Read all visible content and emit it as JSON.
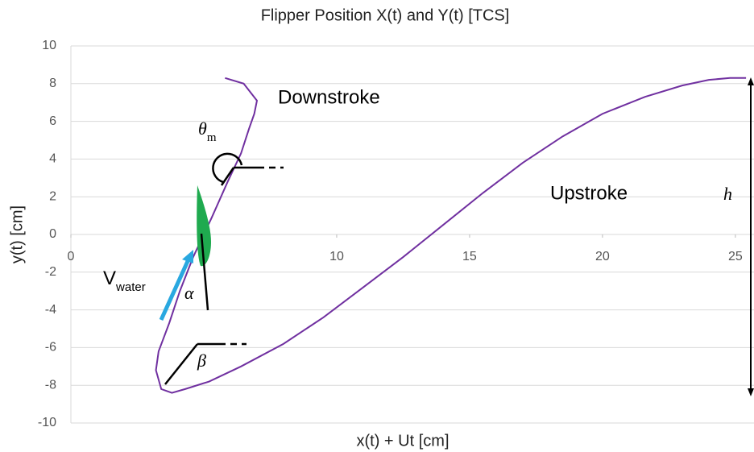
{
  "chart_data": {
    "type": "line",
    "title": "Flipper Position X(t) and Y(t) [TCS]",
    "x_label": "x(t) + Ut [cm]",
    "y_label": "y(t) [cm]",
    "xlim": [
      0,
      25.7
    ],
    "ylim": [
      -10,
      10
    ],
    "xticks": [
      0,
      5,
      10,
      15,
      20,
      25
    ],
    "yticks": [
      -10,
      -8,
      -6,
      -4,
      -2,
      0,
      2,
      4,
      6,
      8,
      10
    ],
    "grid": true,
    "series": [
      {
        "color": "#7030a0",
        "x": [
          5.8,
          6.5,
          7.0,
          6.9,
          6.7,
          6.4,
          5.9,
          5.3,
          4.6,
          4.1,
          3.7,
          3.3,
          3.2,
          3.4,
          3.8,
          4.3,
          5.2,
          6.4,
          8.0,
          9.5,
          11.0,
          12.5,
          14.0,
          15.5,
          17.0,
          18.5,
          20.0,
          21.6,
          23.0,
          24.0,
          24.8,
          25.4
        ],
        "y": [
          8.3,
          8.0,
          7.1,
          6.4,
          5.6,
          4.3,
          2.8,
          0.9,
          -1.2,
          -3.0,
          -4.7,
          -6.2,
          -7.2,
          -8.2,
          -8.4,
          -8.2,
          -7.8,
          -7.0,
          -5.8,
          -4.4,
          -2.8,
          -1.2,
          0.5,
          2.2,
          3.8,
          5.2,
          6.4,
          7.3,
          7.9,
          8.2,
          8.3,
          8.3
        ]
      }
    ],
    "annotations": [
      "Downstroke",
      "Upstroke",
      "h"
    ],
    "symbols": [
      {
        "text": "θ",
        "sub": "m"
      },
      {
        "text": "V",
        "sub": "water"
      },
      {
        "text": "α"
      },
      {
        "text": "β"
      }
    ]
  }
}
